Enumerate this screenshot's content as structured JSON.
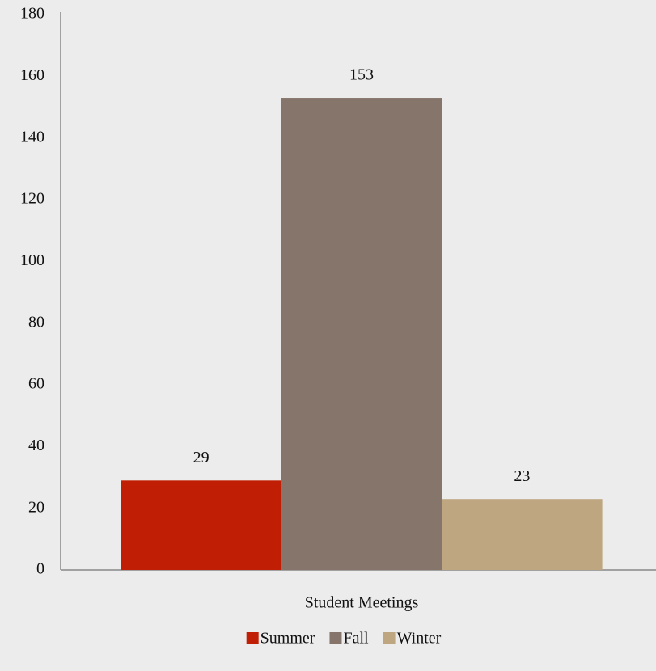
{
  "chart_data": {
    "type": "bar",
    "categories": [
      "Student Meetings"
    ],
    "series": [
      {
        "name": "Summer",
        "color": "#c01f05",
        "values": [
          29
        ]
      },
      {
        "name": "Fall",
        "color": "#85756a",
        "values": [
          153
        ]
      },
      {
        "name": "Winter",
        "color": "#bea680",
        "values": [
          23
        ]
      }
    ],
    "ylim": [
      0,
      180
    ],
    "yticks": [
      0,
      20,
      40,
      60,
      80,
      100,
      120,
      140,
      160,
      180
    ],
    "grid": false,
    "legend": "bottom",
    "data_labels": true
  }
}
